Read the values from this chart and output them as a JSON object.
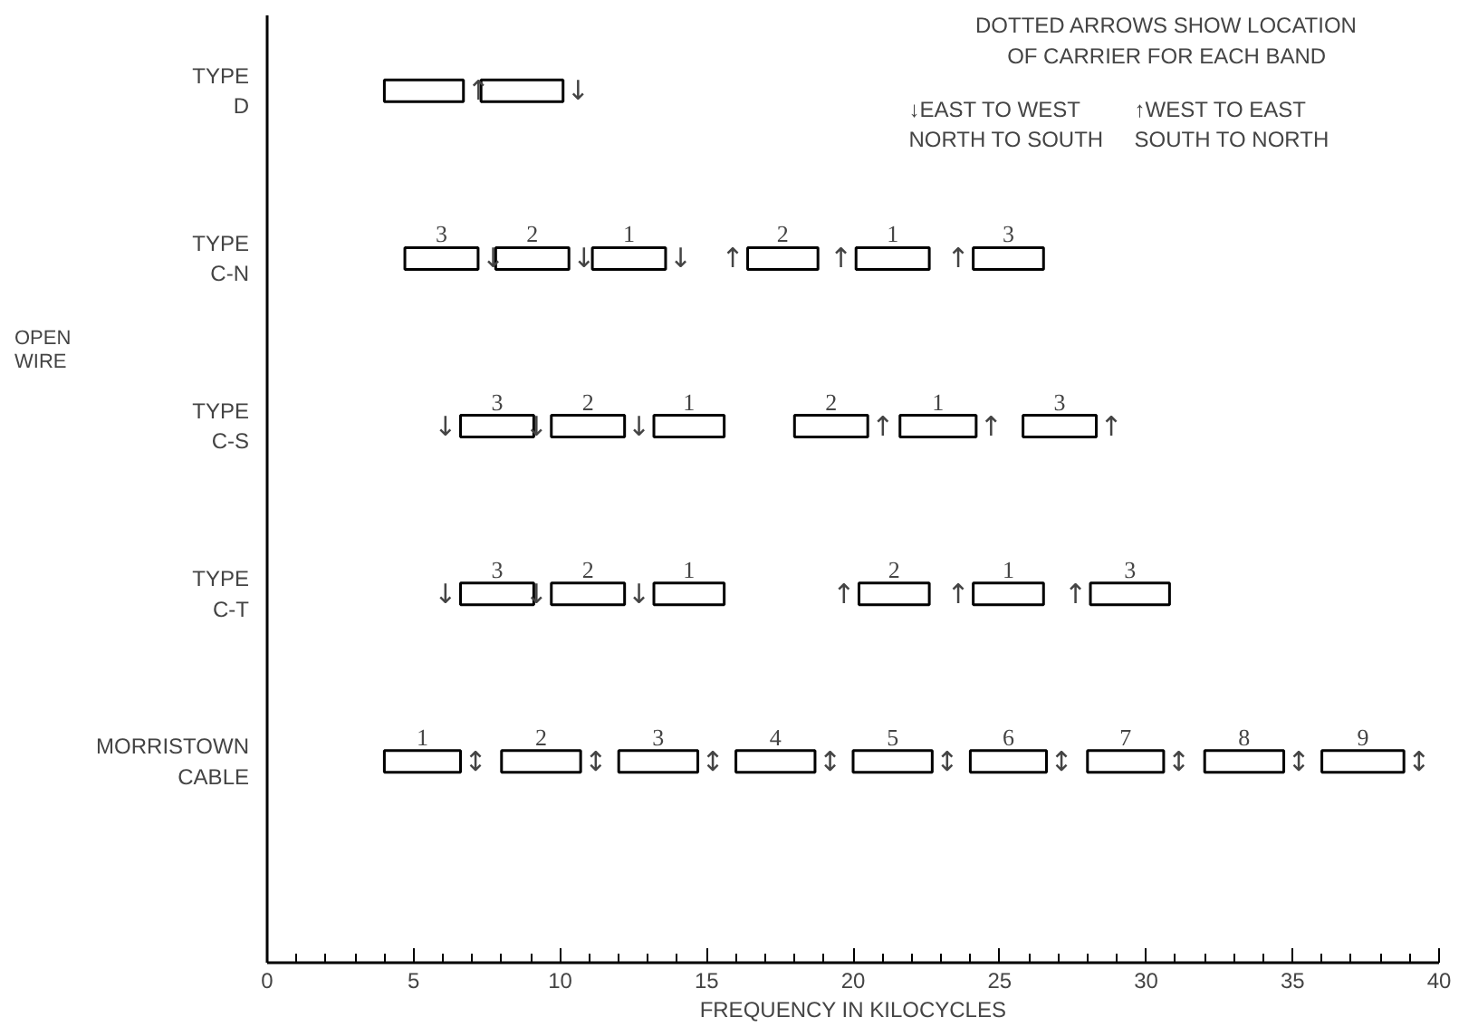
{
  "chart_data": {
    "type": "bar",
    "orientation": "horizontal",
    "xlabel": "FREQUENCY IN KILOCYCLES",
    "categories": [
      "TYPE\nD",
      "TYPE\nC-N",
      "TYPE\nC-S",
      "TYPE\nC-T",
      "MORRISTOWN\nCABLE"
    ],
    "xlim": [
      0,
      40
    ],
    "xticks": [
      0,
      {
        "value": 1,
        "label": null
      },
      {
        "value": 2,
        "label": null
      },
      {
        "value": 3,
        "label": null
      },
      {
        "value": 4,
        "label": null
      },
      5,
      {
        "value": 6,
        "label": null
      },
      {
        "value": 7,
        "label": null
      },
      {
        "value": 8,
        "label": null
      },
      {
        "value": 9,
        "label": null
      },
      10,
      {
        "value": 11,
        "label": null
      },
      {
        "value": 12,
        "label": null
      },
      {
        "value": 13,
        "label": null
      },
      {
        "value": 14,
        "label": null
      },
      15,
      {
        "value": 16,
        "label": null
      },
      {
        "value": 17,
        "label": null
      },
      {
        "value": 18,
        "label": null
      },
      {
        "value": 19,
        "label": null
      },
      20,
      {
        "value": 21,
        "label": null
      },
      {
        "value": 22,
        "label": null
      },
      {
        "value": 23,
        "label": null
      },
      {
        "value": 24,
        "label": null
      },
      25,
      {
        "value": 26,
        "label": null
      },
      {
        "value": 27,
        "label": null
      },
      {
        "value": 28,
        "label": null
      },
      {
        "value": 29,
        "label": null
      },
      30,
      {
        "value": 31,
        "label": null
      },
      {
        "value": 32,
        "label": null
      },
      {
        "value": 33,
        "label": null
      },
      {
        "value": 34,
        "label": null
      },
      35,
      {
        "value": 36,
        "label": null
      },
      {
        "value": 37,
        "label": null
      },
      {
        "value": 38,
        "label": null
      },
      {
        "value": 39,
        "label": null
      },
      40
    ],
    "grid": false,
    "series": [
      {
        "name": "3",
        "color": "#000000",
        "base": [
          null,
          4.7,
          6.6,
          6.6,
          null
        ],
        "values": [
          null,
          2.5,
          2.5,
          2.5,
          null
        ]
      },
      {
        "name": "2",
        "color": "#000000",
        "base": [
          null,
          7.8,
          9.7,
          9.7,
          null
        ],
        "values": [
          null,
          2.5,
          2.5,
          2.5,
          null
        ]
      },
      {
        "name": "1",
        "color": "#000000",
        "base": [
          null,
          11.1,
          13.2,
          13.2,
          null
        ],
        "values": [
          null,
          2.5,
          2.4,
          2.4,
          null
        ]
      },
      {
        "name": "2",
        "color": "#000000",
        "base": [
          null,
          16.4,
          18.0,
          20.2,
          null
        ],
        "values": [
          null,
          2.4,
          2.5,
          2.4,
          null
        ]
      },
      {
        "name": "1",
        "color": "#000000",
        "base": [
          null,
          20.1,
          21.6,
          24.1,
          null
        ],
        "values": [
          null,
          2.5,
          2.6,
          2.4,
          null
        ]
      },
      {
        "name": "3",
        "color": "#000000",
        "base": [
          null,
          24.1,
          25.8,
          28.1,
          null
        ],
        "values": [
          null,
          2.4,
          2.5,
          2.7,
          null
        ]
      },
      {
        "color": "#000000",
        "base": [
          4.0,
          null,
          null,
          null,
          null
        ],
        "values": [
          2.7,
          null,
          null,
          null,
          null
        ]
      },
      {
        "color": "#000000",
        "base": [
          7.3,
          null,
          null,
          null,
          null
        ],
        "values": [
          2.8,
          null,
          null,
          null,
          null
        ]
      },
      {
        "name": "1",
        "color": "#000000",
        "base": [
          null,
          null,
          null,
          null,
          4.0
        ],
        "values": [
          null,
          null,
          null,
          null,
          2.6
        ]
      },
      {
        "name": "2",
        "color": "#000000",
        "base": [
          null,
          null,
          null,
          null,
          8.0
        ],
        "values": [
          null,
          null,
          null,
          null,
          2.7
        ]
      },
      {
        "name": "3",
        "color": "#000000",
        "base": [
          null,
          null,
          null,
          null,
          12.0
        ],
        "values": [
          null,
          null,
          null,
          null,
          2.7
        ]
      },
      {
        "name": "4",
        "color": "#000000",
        "base": [
          null,
          null,
          null,
          null,
          16.0
        ],
        "values": [
          null,
          null,
          null,
          null,
          2.7
        ]
      },
      {
        "name": "5",
        "color": "#000000",
        "base": [
          null,
          null,
          null,
          null,
          20.0
        ],
        "values": [
          null,
          null,
          null,
          null,
          2.7
        ]
      },
      {
        "name": "6",
        "color": "#000000",
        "base": [
          null,
          null,
          null,
          null,
          24.0
        ],
        "values": [
          null,
          null,
          null,
          null,
          2.6
        ]
      },
      {
        "name": "7",
        "color": "#000000",
        "base": [
          null,
          null,
          null,
          null,
          28.0
        ],
        "values": [
          null,
          null,
          null,
          null,
          2.6
        ]
      },
      {
        "name": "8",
        "color": "#000000",
        "base": [
          null,
          null,
          null,
          null,
          32.0
        ],
        "values": [
          null,
          null,
          null,
          null,
          2.7
        ]
      },
      {
        "name": "9",
        "color": "#000000",
        "base": [
          null,
          null,
          null,
          null,
          36.0
        ],
        "values": [
          null,
          null,
          null,
          null,
          2.8
        ]
      }
    ],
    "annotations": [
      "OPEN\nWIRE",
      "DOTTED ARROWS SHOW LOCATION\nOF CARRIER FOR EACH BAND",
      "↓EAST TO WEST\n  NORTH TO SOUTH",
      "↑WEST TO EAST\n  SOUTH TO NORTH",
      {
        "text": "↑",
        "x": 6.7,
        "y": "TYPE\nD"
      },
      {
        "text": "↓",
        "x": 10.1,
        "y": "TYPE\nD"
      },
      {
        "text": "↓",
        "x": 7.2,
        "y": "TYPE\nC-N"
      },
      {
        "text": "↓",
        "x": 10.3,
        "y": "TYPE\nC-N"
      },
      {
        "text": "↓",
        "x": 13.6,
        "y": "TYPE\nC-N"
      },
      {
        "text": "↑",
        "x": 16.4,
        "y": "TYPE\nC-N"
      },
      {
        "text": "↑",
        "x": 20.1,
        "y": "TYPE\nC-N"
      },
      {
        "text": "↑",
        "x": 24.1,
        "y": "TYPE\nC-N"
      },
      {
        "text": "↓",
        "x": 6.6,
        "y": "TYPE\nC-S"
      },
      {
        "text": "↓",
        "x": 9.7,
        "y": "TYPE\nC-S"
      },
      {
        "text": "↓",
        "x": 13.2,
        "y": "TYPE\nC-S"
      },
      {
        "text": "↑",
        "x": 20.5,
        "y": "TYPE\nC-S"
      },
      {
        "text": "↑",
        "x": 24.2,
        "y": "TYPE\nC-S"
      },
      {
        "text": "↑",
        "x": 28.3,
        "y": "TYPE\nC-S"
      },
      {
        "text": "↓",
        "x": 6.6,
        "y": "TYPE\nC-T"
      },
      {
        "text": "↓",
        "x": 9.7,
        "y": "TYPE\nC-T"
      },
      {
        "text": "↓",
        "x": 13.2,
        "y": "TYPE\nC-T"
      },
      {
        "text": "↑",
        "x": 20.2,
        "y": "TYPE\nC-T"
      },
      {
        "text": "↑",
        "x": 24.1,
        "y": "TYPE\nC-T"
      },
      {
        "text": "↑",
        "x": 28.1,
        "y": "TYPE\nC-T"
      },
      {
        "text": "↕",
        "x": 6.6,
        "y": "MORRISTOWN\nCABLE"
      },
      {
        "text": "↕",
        "x": 10.7,
        "y": "MORRISTOWN\nCABLE"
      },
      {
        "text": "↕",
        "x": 14.7,
        "y": "MORRISTOWN\nCABLE"
      },
      {
        "text": "↕",
        "x": 18.7,
        "y": "MORRISTOWN\nCABLE"
      },
      {
        "text": "↕",
        "x": 22.7,
        "y": "MORRISTOWN\nCABLE"
      },
      {
        "text": "↕",
        "x": 26.6,
        "y": "MORRISTOWN\nCABLE"
      },
      {
        "text": "↕",
        "x": 30.6,
        "y": "MORRISTOWN\nCABLE"
      },
      {
        "text": "↕",
        "x": 34.7,
        "y": "MORRISTOWN\nCABLE"
      },
      {
        "text": "↕",
        "x": 38.8,
        "y": "MORRISTOWN\nCABLE"
      }
    ]
  }
}
